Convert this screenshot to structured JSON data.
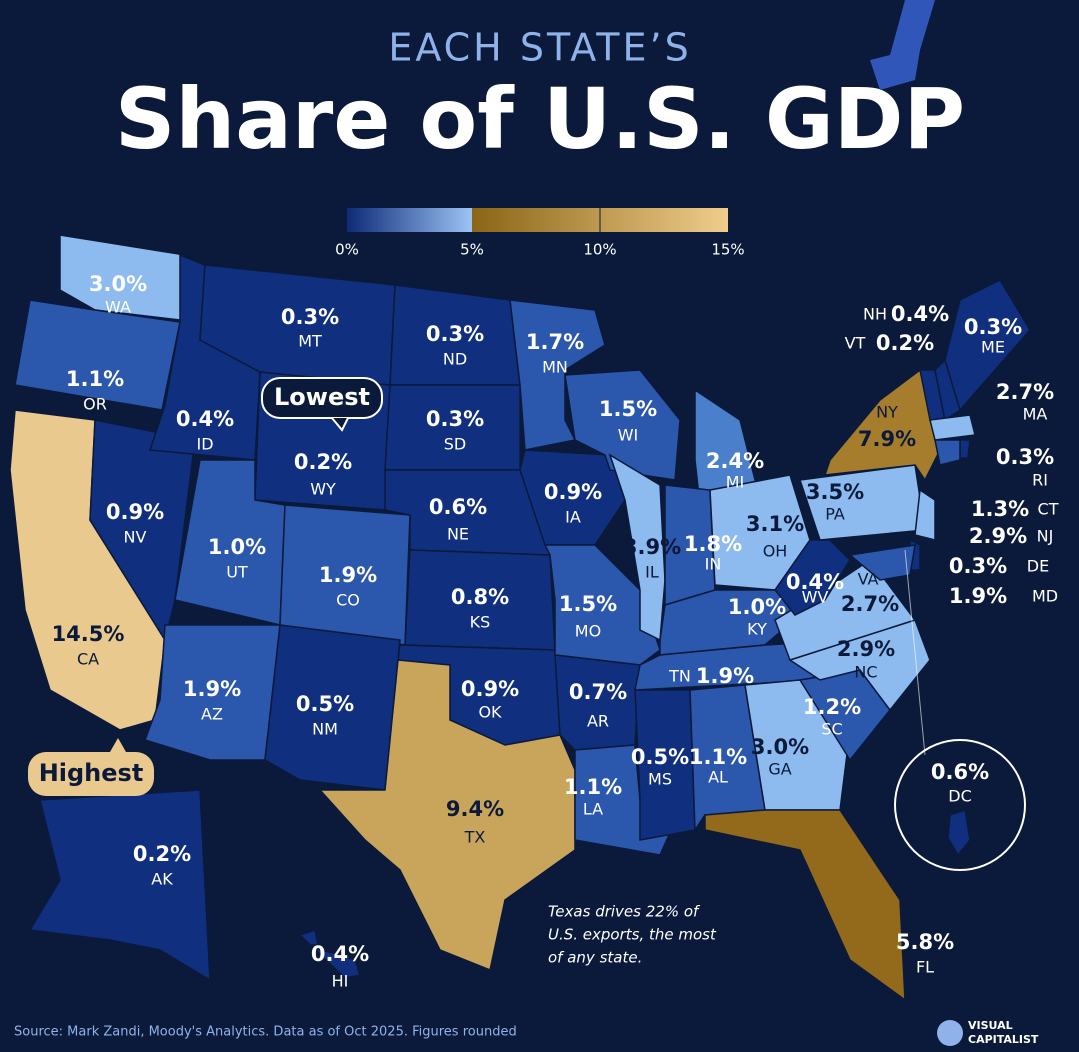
{
  "header": {
    "kicker": "EACH STATE’S",
    "title": "Share of U.S. GDP"
  },
  "legend": {
    "labels": [
      "0%",
      "5%",
      "10%",
      "15%"
    ]
  },
  "states": [
    {
      "abbr": "WA",
      "share": "3.0%"
    },
    {
      "abbr": "OR",
      "share": "1.1%"
    },
    {
      "abbr": "CA",
      "share": "14.5%"
    },
    {
      "abbr": "NV",
      "share": "0.9%"
    },
    {
      "abbr": "ID",
      "share": "0.4%"
    },
    {
      "abbr": "MT",
      "share": "0.3%"
    },
    {
      "abbr": "WY",
      "share": "0.2%"
    },
    {
      "abbr": "UT",
      "share": "1.0%"
    },
    {
      "abbr": "CO",
      "share": "1.9%"
    },
    {
      "abbr": "AZ",
      "share": "1.9%"
    },
    {
      "abbr": "NM",
      "share": "0.5%"
    },
    {
      "abbr": "ND",
      "share": "0.3%"
    },
    {
      "abbr": "SD",
      "share": "0.3%"
    },
    {
      "abbr": "NE",
      "share": "0.6%"
    },
    {
      "abbr": "KS",
      "share": "0.8%"
    },
    {
      "abbr": "OK",
      "share": "0.9%"
    },
    {
      "abbr": "TX",
      "share": "9.4%"
    },
    {
      "abbr": "MN",
      "share": "1.7%"
    },
    {
      "abbr": "IA",
      "share": "0.9%"
    },
    {
      "abbr": "MO",
      "share": "1.5%"
    },
    {
      "abbr": "AR",
      "share": "0.7%"
    },
    {
      "abbr": "LA",
      "share": "1.1%"
    },
    {
      "abbr": "WI",
      "share": "1.5%"
    },
    {
      "abbr": "IL",
      "share": "3.9%"
    },
    {
      "abbr": "MI",
      "share": "2.4%"
    },
    {
      "abbr": "IN",
      "share": "1.8%"
    },
    {
      "abbr": "OH",
      "share": "3.1%"
    },
    {
      "abbr": "KY",
      "share": "1.0%"
    },
    {
      "abbr": "TN",
      "share": "1.9%"
    },
    {
      "abbr": "MS",
      "share": "0.5%"
    },
    {
      "abbr": "AL",
      "share": "1.1%"
    },
    {
      "abbr": "GA",
      "share": "3.0%"
    },
    {
      "abbr": "FL",
      "share": "5.8%"
    },
    {
      "abbr": "SC",
      "share": "1.2%"
    },
    {
      "abbr": "NC",
      "share": "2.9%"
    },
    {
      "abbr": "VA",
      "share": "2.7%"
    },
    {
      "abbr": "WV",
      "share": "0.4%"
    },
    {
      "abbr": "PA",
      "share": "3.5%"
    },
    {
      "abbr": "NY",
      "share": "7.9%"
    },
    {
      "abbr": "VT",
      "share": "0.2%"
    },
    {
      "abbr": "NH",
      "share": "0.4%"
    },
    {
      "abbr": "ME",
      "share": "0.3%"
    },
    {
      "abbr": "MA",
      "share": "2.7%"
    },
    {
      "abbr": "RI",
      "share": "0.3%"
    },
    {
      "abbr": "CT",
      "share": "1.3%"
    },
    {
      "abbr": "NJ",
      "share": "2.9%"
    },
    {
      "abbr": "DE",
      "share": "0.3%"
    },
    {
      "abbr": "MD",
      "share": "1.9%"
    },
    {
      "abbr": "DC",
      "share": "0.6%"
    },
    {
      "abbr": "AK",
      "share": "0.2%"
    },
    {
      "abbr": "HI",
      "share": "0.4%"
    }
  ],
  "callouts": {
    "lowest": "Lowest",
    "highest": "Highest"
  },
  "annotation": [
    "Texas drives 22% of",
    "U.S. exports, the most",
    "of any state."
  ],
  "source": "Source: Mark Zandi, Moody's Analytics. Data as of Oct 2025. Figures rounded",
  "logo": [
    "VISUAL",
    "CAPITALIST"
  ]
}
